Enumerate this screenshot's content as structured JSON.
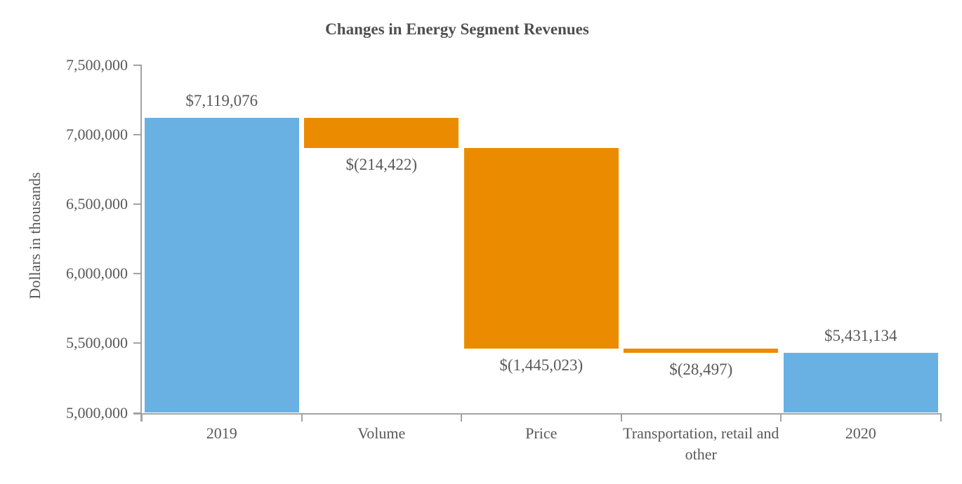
{
  "chart_data": {
    "type": "waterfall",
    "title": "Changes in Energy Segment Revenues",
    "ylabel": "Dollars in thousands",
    "xlabel": "",
    "ylim": [
      5000000,
      7500000
    ],
    "ytick_interval": 500000,
    "grid": false,
    "legend": false,
    "yticks": [
      {
        "value": 7500000,
        "label": "7,500,000"
      },
      {
        "value": 7000000,
        "label": "7,000,000"
      },
      {
        "value": 6500000,
        "label": "6,500,000"
      },
      {
        "value": 6000000,
        "label": "6,000,000"
      },
      {
        "value": 5500000,
        "label": "5,500,000"
      },
      {
        "value": 5000000,
        "label": "5,000,000"
      }
    ],
    "categories": [
      "2019",
      "Volume",
      "Price",
      "Transportation, retail and other",
      "2020"
    ],
    "bars": [
      {
        "category": "2019",
        "kind": "total",
        "value": 7119076,
        "value_label": "$7,119,076",
        "label_position": "above"
      },
      {
        "category": "Volume",
        "kind": "decrease",
        "value": -214422,
        "value_label": "$(214,422)",
        "label_position": "below"
      },
      {
        "category": "Price",
        "kind": "decrease",
        "value": -1445023,
        "value_label": "$(1,445,023)",
        "label_position": "below"
      },
      {
        "category": "Transportation, retail and other",
        "kind": "decrease",
        "value": -28497,
        "value_label": "$(28,497)",
        "label_position": "below"
      },
      {
        "category": "2020",
        "kind": "total",
        "value": 5431134,
        "value_label": "$5,431,134",
        "label_position": "above"
      }
    ],
    "colors": {
      "total": "#68B1E2",
      "decrease": "#EB8C00",
      "axis": "#A3A3A3",
      "text": "#595959",
      "title": "#4F4F4F"
    }
  }
}
